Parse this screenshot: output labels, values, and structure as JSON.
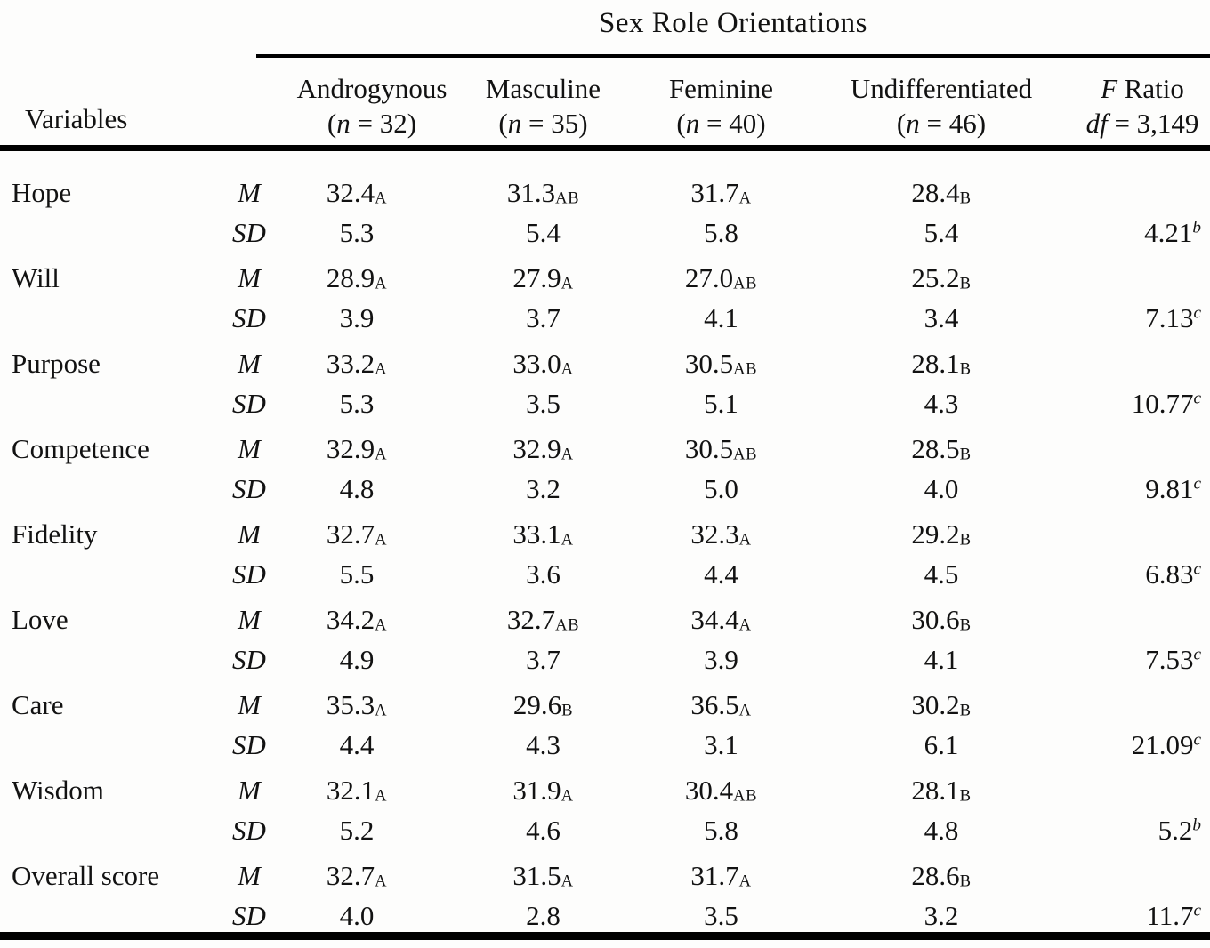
{
  "table": {
    "spanner_title": "Sex Role Orientations",
    "variables_label": "Variables",
    "stat_mean": "M",
    "stat_sd": "SD",
    "group_columns": [
      {
        "label": "Androgynous",
        "n_pre": "(",
        "n_sym": "n",
        "n_post": " = 32)"
      },
      {
        "label": "Masculine",
        "n_pre": "(",
        "n_sym": "n",
        "n_post": " = 35)"
      },
      {
        "label": "Feminine",
        "n_pre": "(",
        "n_sym": "n",
        "n_post": " = 40)"
      },
      {
        "label": "Undifferentiated",
        "n_pre": "(",
        "n_sym": "n",
        "n_post": " = 46)"
      }
    ],
    "f_column": {
      "sym": "F",
      "label": " Ratio",
      "df_sym": "df",
      "df_post": " = 3,149"
    }
  },
  "rows": [
    {
      "variable": "Hope",
      "means": [
        {
          "v": "32.4",
          "sub": "A"
        },
        {
          "v": "31.3",
          "sub": "AB"
        },
        {
          "v": "31.7",
          "sub": "A"
        },
        {
          "v": "28.4",
          "sub": "B"
        }
      ],
      "sds": [
        "5.3",
        "5.4",
        "5.8",
        "5.4"
      ],
      "f": {
        "v": "4.21",
        "sup": "b"
      }
    },
    {
      "variable": "Will",
      "means": [
        {
          "v": "28.9",
          "sub": "A"
        },
        {
          "v": "27.9",
          "sub": "A"
        },
        {
          "v": "27.0",
          "sub": "AB"
        },
        {
          "v": "25.2",
          "sub": "B"
        }
      ],
      "sds": [
        "3.9",
        "3.7",
        "4.1",
        "3.4"
      ],
      "f": {
        "v": "7.13",
        "sup": "c"
      }
    },
    {
      "variable": "Purpose",
      "means": [
        {
          "v": "33.2",
          "sub": "A"
        },
        {
          "v": "33.0",
          "sub": "A"
        },
        {
          "v": "30.5",
          "sub": "AB"
        },
        {
          "v": "28.1",
          "sub": "B"
        }
      ],
      "sds": [
        "5.3",
        "3.5",
        "5.1",
        "4.3"
      ],
      "f": {
        "v": "10.77",
        "sup": "c"
      }
    },
    {
      "variable": "Competence",
      "means": [
        {
          "v": "32.9",
          "sub": "A"
        },
        {
          "v": "32.9",
          "sub": "A"
        },
        {
          "v": "30.5",
          "sub": "AB"
        },
        {
          "v": "28.5",
          "sub": "B"
        }
      ],
      "sds": [
        "4.8",
        "3.2",
        "5.0",
        "4.0"
      ],
      "f": {
        "v": "9.81",
        "sup": "c"
      }
    },
    {
      "variable": "Fidelity",
      "means": [
        {
          "v": "32.7",
          "sub": "A"
        },
        {
          "v": "33.1",
          "sub": "A"
        },
        {
          "v": "32.3",
          "sub": "A"
        },
        {
          "v": "29.2",
          "sub": "B"
        }
      ],
      "sds": [
        "5.5",
        "3.6",
        "4.4",
        "4.5"
      ],
      "f": {
        "v": "6.83",
        "sup": "c"
      }
    },
    {
      "variable": "Love",
      "means": [
        {
          "v": "34.2",
          "sub": "A"
        },
        {
          "v": "32.7",
          "sub": "AB"
        },
        {
          "v": "34.4",
          "sub": "A"
        },
        {
          "v": "30.6",
          "sub": "B"
        }
      ],
      "sds": [
        "4.9",
        "3.7",
        "3.9",
        "4.1"
      ],
      "f": {
        "v": "7.53",
        "sup": "c"
      }
    },
    {
      "variable": "Care",
      "means": [
        {
          "v": "35.3",
          "sub": "A"
        },
        {
          "v": "29.6",
          "sub": "B"
        },
        {
          "v": "36.5",
          "sub": "A"
        },
        {
          "v": "30.2",
          "sub": "B"
        }
      ],
      "sds": [
        "4.4",
        "4.3",
        "3.1",
        "6.1"
      ],
      "f": {
        "v": "21.09",
        "sup": "c"
      }
    },
    {
      "variable": "Wisdom",
      "means": [
        {
          "v": "32.1",
          "sub": "A"
        },
        {
          "v": "31.9",
          "sub": "A"
        },
        {
          "v": "30.4",
          "sub": "AB"
        },
        {
          "v": "28.1",
          "sub": "B"
        }
      ],
      "sds": [
        "5.2",
        "4.6",
        "5.8",
        "4.8"
      ],
      "f": {
        "v": "5.2",
        "sup": "b"
      }
    },
    {
      "variable": "Overall score",
      "means": [
        {
          "v": "32.7",
          "sub": "A"
        },
        {
          "v": "31.5",
          "sub": "A"
        },
        {
          "v": "31.7",
          "sub": "A"
        },
        {
          "v": "28.6",
          "sub": "B"
        }
      ],
      "sds": [
        "4.0",
        "2.8",
        "3.5",
        "3.2"
      ],
      "f": {
        "v": "11.7",
        "sup": "c"
      }
    }
  ]
}
